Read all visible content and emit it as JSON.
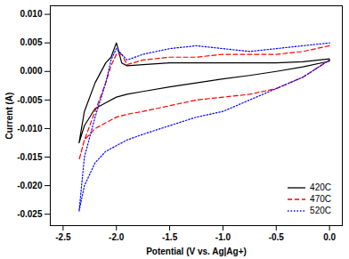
{
  "chart_data": {
    "type": "line",
    "x_label": "Potential (V vs. Ag|Ag+)",
    "y_label": "Current (A)",
    "xlim": [
      -2.62,
      0.12
    ],
    "ylim": [
      -0.027,
      0.0115
    ],
    "xticks": [
      -2.5,
      {
        "value": -2,
        "label": "-2.0"
      },
      -1.5,
      {
        "value": -1,
        "label": "-1.0"
      },
      -0.5,
      {
        "value": 0,
        "label": "0.0"
      }
    ],
    "yticks": [
      {
        "value": -0.025,
        "label": "-0.025"
      },
      {
        "value": -0.02,
        "label": "-0.020"
      },
      {
        "value": -0.015,
        "label": "-0.015"
      },
      {
        "value": -0.01,
        "label": "-0.010"
      },
      {
        "value": -0.005,
        "label": "-0.005"
      },
      {
        "value": 0,
        "label": "0.000"
      },
      {
        "value": 0.005,
        "label": "0.005"
      },
      {
        "value": 0.01,
        "label": "0.010"
      }
    ],
    "grid": false,
    "legend": "lower right",
    "x": [
      0.0,
      -0.25,
      -0.5,
      -0.75,
      -1.0,
      -1.25,
      -1.5,
      -1.75,
      -1.9,
      -2.0,
      -2.1,
      -2.2,
      -2.3,
      -2.35,
      -2.3,
      -2.2,
      -2.1,
      -2.05,
      -2.0,
      -1.95,
      -1.9,
      -1.75,
      -1.5,
      -1.25,
      -1.0,
      -0.75,
      -0.5,
      -0.25,
      0.0
    ],
    "series": [
      {
        "name": "420C",
        "color": "#000000",
        "line_style": "solid",
        "values": [
          0.0018,
          0.0008,
          0.0,
          -0.0007,
          -0.0013,
          -0.002,
          -0.0027,
          -0.0035,
          -0.004,
          -0.0045,
          -0.0055,
          -0.0065,
          -0.0095,
          -0.0125,
          -0.007,
          -0.002,
          0.0015,
          0.0025,
          0.005,
          0.0015,
          0.001,
          0.0012,
          0.0015,
          0.0015,
          0.0015,
          0.0015,
          0.0015,
          0.0017,
          0.0022
        ]
      },
      {
        "name": "470C",
        "color": "#ff0000",
        "line_style": "dashed",
        "values": [
          0.002,
          -0.001,
          -0.003,
          -0.004,
          -0.0045,
          -0.005,
          -0.006,
          -0.007,
          -0.0075,
          -0.008,
          -0.009,
          -0.01,
          -0.012,
          -0.0155,
          -0.012,
          -0.007,
          -0.002,
          0.001,
          0.003,
          0.003,
          0.0012,
          0.002,
          0.0025,
          0.0025,
          0.003,
          0.003,
          0.003,
          0.0035,
          0.0045
        ]
      },
      {
        "name": "520C",
        "color": "#0000ff",
        "line_style": "dotted",
        "values": [
          0.002,
          -0.001,
          -0.003,
          -0.005,
          -0.007,
          -0.008,
          -0.0095,
          -0.011,
          -0.012,
          -0.013,
          -0.014,
          -0.016,
          -0.02,
          -0.0245,
          -0.015,
          -0.008,
          -0.002,
          0.002,
          0.004,
          0.003,
          0.002,
          0.003,
          0.004,
          0.0045,
          0.004,
          0.0035,
          0.004,
          0.0045,
          0.005
        ]
      }
    ]
  }
}
